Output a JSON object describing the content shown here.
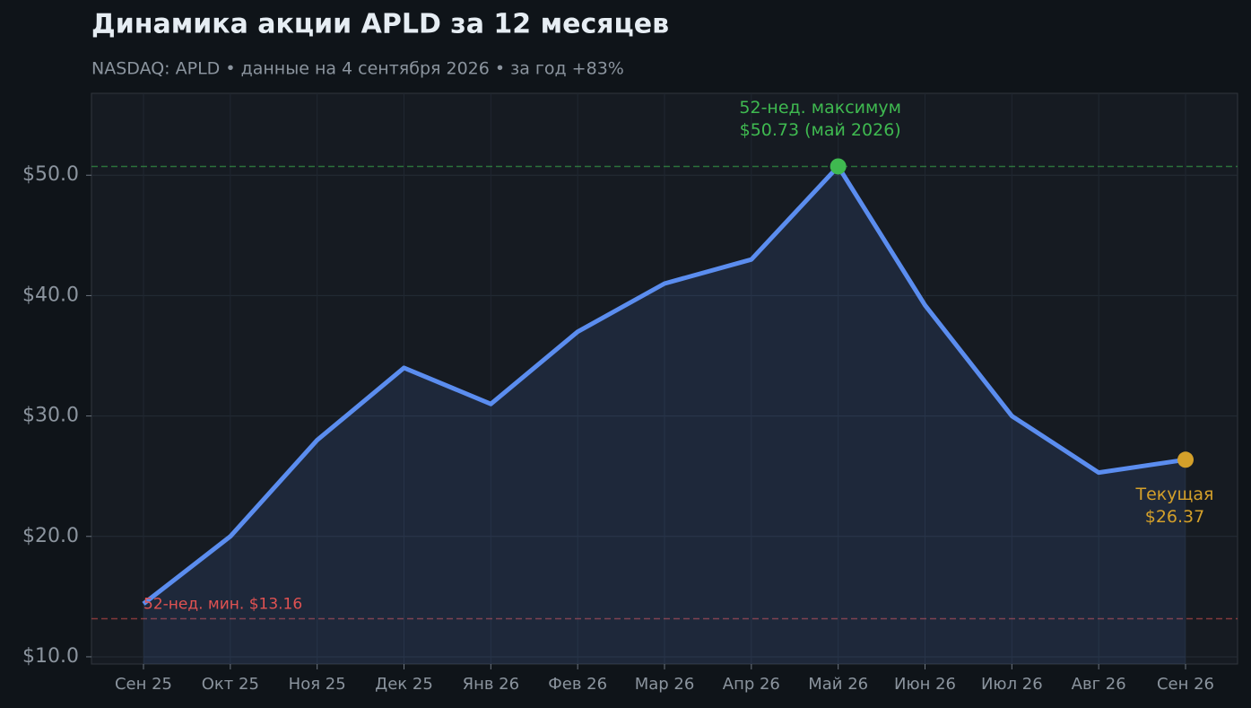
{
  "chart_data": {
    "type": "line",
    "title": "Динамика акции APLD за 12 месяцев",
    "subtitle": "NASDAQ: APLD  •  данные на 4 сентября 2026  •  за год +83%",
    "categories": [
      "Сен 25",
      "Окт 25",
      "Ноя 25",
      "Дек 25",
      "Янв 26",
      "Фев 26",
      "Мар 26",
      "Апр 26",
      "Май 26",
      "Июн 26",
      "Июл 26",
      "Авг 26",
      "Сен 26"
    ],
    "values": [
      14.4,
      20.0,
      28.0,
      34.0,
      31.0,
      37.0,
      41.0,
      43.0,
      50.73,
      39.2,
      30.0,
      25.3,
      26.37
    ],
    "color": "#5b8def",
    "ylim": [
      9.4,
      56.8
    ],
    "yticks": [
      {
        "value": 10,
        "label": "$10.0"
      },
      {
        "value": 20,
        "label": "$20.0"
      },
      {
        "value": 30,
        "label": "$30.0"
      },
      {
        "value": 40,
        "label": "$40.0"
      },
      {
        "value": 50,
        "label": "$50.0"
      }
    ],
    "grid": true,
    "reference_lines": [
      {
        "value": 50.73,
        "color": "#3fb950"
      },
      {
        "value": 13.16,
        "color": "#e05252",
        "label": "52-нед. мин. $13.16"
      }
    ],
    "highlights": [
      {
        "category": "Май 26",
        "color": "#3fb950",
        "label": [
          "52-нед. максимум",
          "$50.73 (май 2026)"
        ]
      },
      {
        "category": "Сен 26",
        "color": "#d4a02a",
        "label": [
          "Текущая",
          "$26.37"
        ]
      }
    ]
  }
}
